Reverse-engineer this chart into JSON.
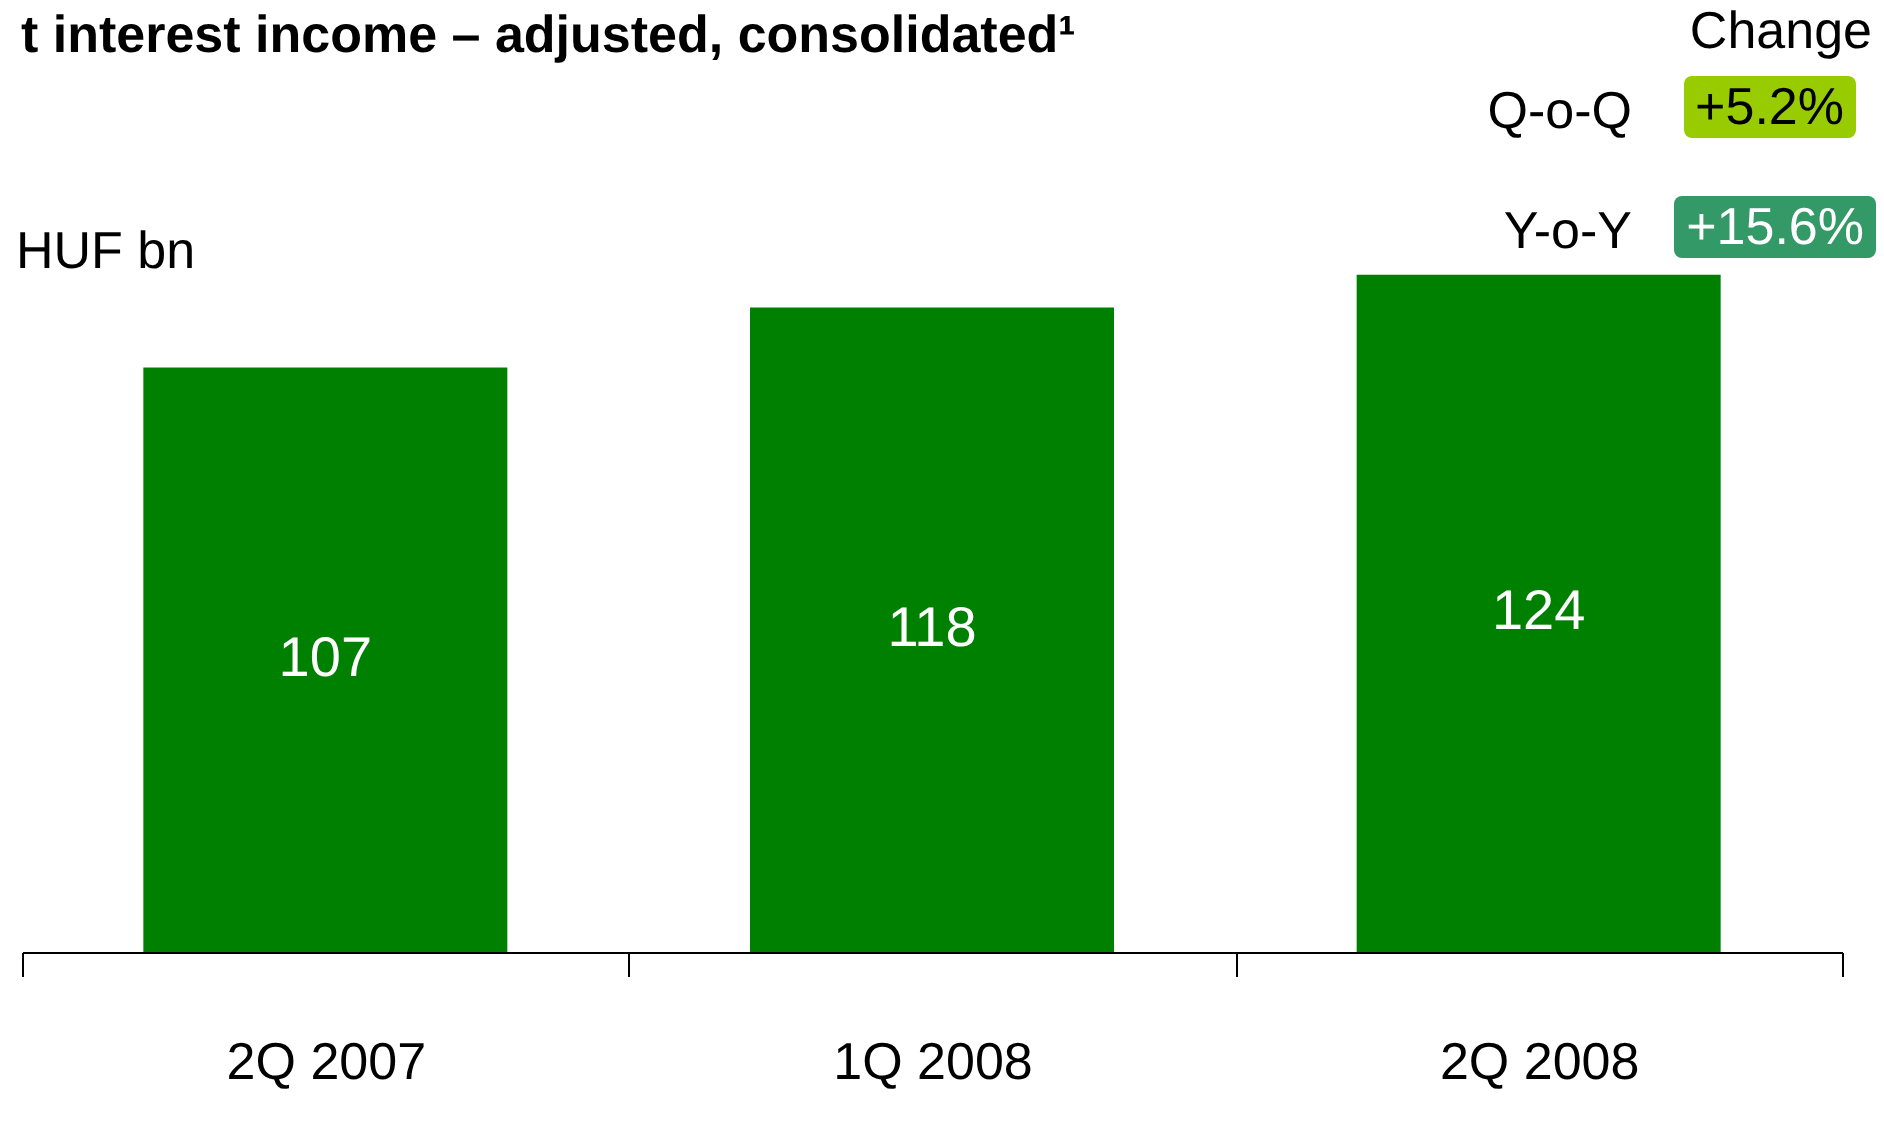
{
  "chart_data": {
    "type": "bar",
    "title": "t interest income –   adjusted, consolidated¹",
    "ylabel": "HUF bn",
    "categories": [
      "2Q 2007",
      "1Q 2008",
      "2Q 2008"
    ],
    "values": [
      107,
      118,
      124
    ],
    "color": "#008000",
    "data_labels": true,
    "grid": false,
    "annotations": [
      "Change",
      "Q-o-Q",
      "+5.2%",
      "Y-o-Y",
      "+15.6%"
    ]
  }
}
